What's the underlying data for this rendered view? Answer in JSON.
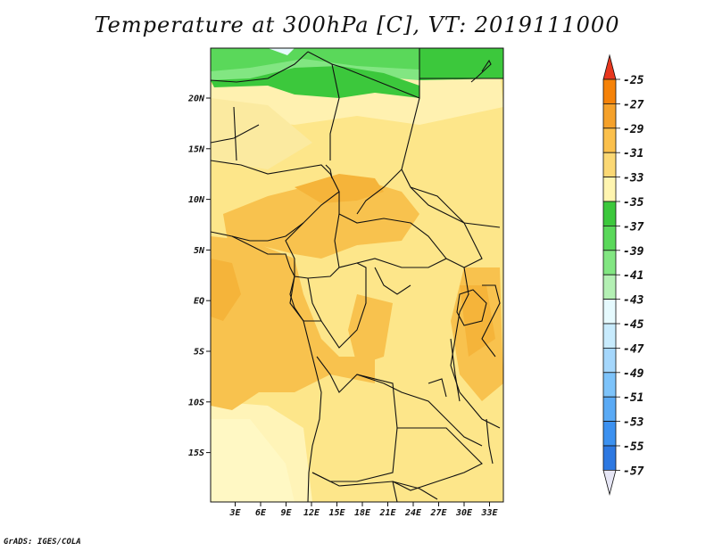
{
  "title": "Temperature at 300hPa [C], VT: 2019111000",
  "credit": "GrADS: IGES/COLA",
  "map": {
    "lat_ticks": [
      "20N",
      "15N",
      "10N",
      "5N",
      "EQ",
      "5S",
      "10S",
      "15S"
    ],
    "lon_ticks": [
      "3E",
      "6E",
      "9E",
      "12E",
      "15E",
      "18E",
      "21E",
      "24E",
      "27E",
      "30E",
      "33E"
    ]
  },
  "colorbar": {
    "labels": [
      "-25",
      "-27",
      "-29",
      "-31",
      "-33",
      "-35",
      "-37",
      "-39",
      "-41",
      "-43",
      "-45",
      "-47",
      "-49",
      "-51",
      "-53",
      "-55",
      "-57"
    ],
    "colors": [
      "#f0e1a5",
      "#fbe69b",
      "#fbd874",
      "#fbc04c",
      "#f5a12a",
      "#f58208",
      "#f05a14",
      "#e8371e",
      "#00156e",
      "#0e3ca0",
      "#1e5ac8",
      "#2d78e1",
      "#3c91f0",
      "#5aaaf5",
      "#7dc3fa",
      "#a5d7fc",
      "#c8ebfd",
      "#e6fafe",
      "#b4f0b4",
      "#82e682",
      "#50d250",
      "#3cc83c",
      "#fff5b0",
      "#fde68a"
    ],
    "segments": [
      "#f05a14",
      "#f58208",
      "#f5a12a",
      "#fbc04c",
      "#fbd874",
      "#fff5b0",
      "#3cc83c",
      "#5ad85a",
      "#82e682",
      "#b4f0b4",
      "#e6fafe",
      "#c8ebfd",
      "#a5d7fc",
      "#7dc3fa",
      "#5aaaf5",
      "#3c91f0",
      "#2d78e1",
      "#1e5ac8",
      "#0e3ca0",
      "#00156e"
    ],
    "top_arrow_color": "#e8371e",
    "bottom_arrow_color": "#e6e6f5"
  },
  "field_colors": {
    "green_dark": "#3cc83c",
    "green_light": "#5ad85a",
    "green_pale": "#82e682",
    "yellow_pale": "#fff5b0",
    "yellow": "#fde68a",
    "yellow_orange": "#fbd874",
    "orange": "#f8c24e",
    "orange_dark": "#f5b43a"
  }
}
